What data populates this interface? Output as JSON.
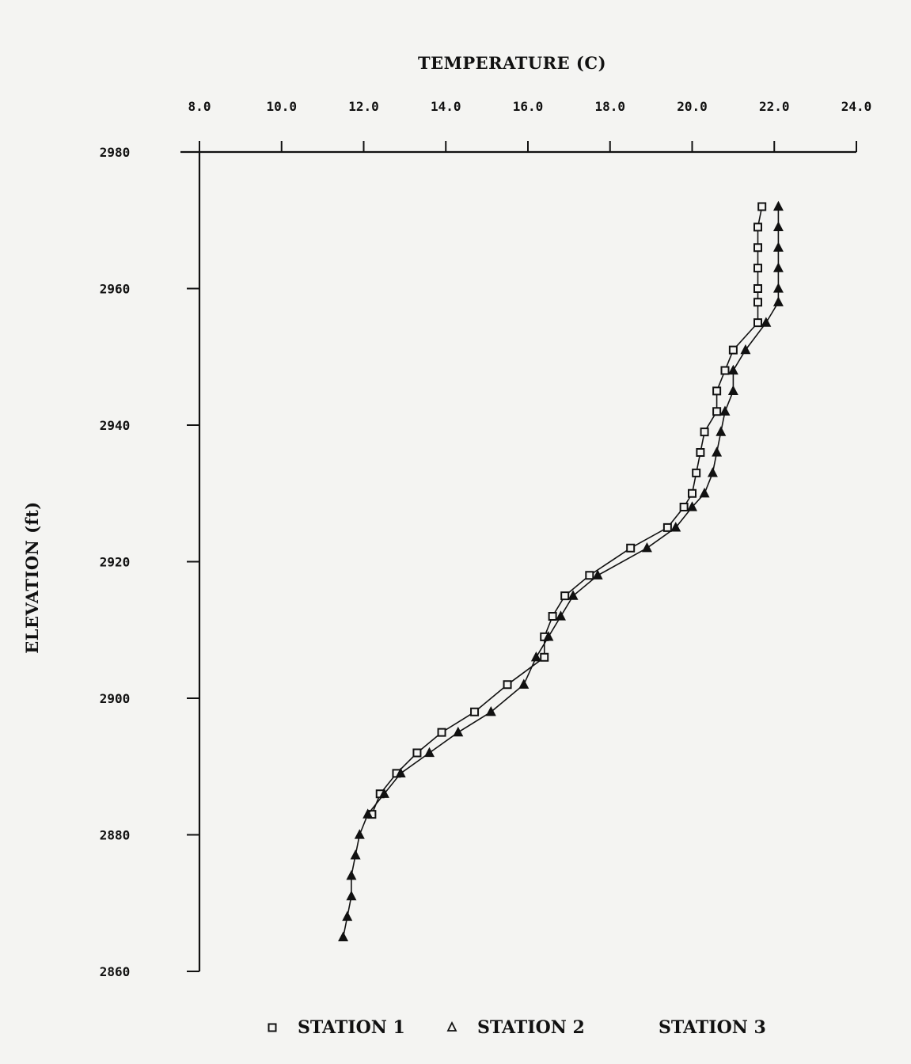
{
  "chart_data": {
    "type": "line",
    "xlabel": "TEMPERATURE (C)",
    "ylabel": "ELEVATION (ft)",
    "xlim": [
      8.0,
      24.0
    ],
    "ylim": [
      2860,
      2980
    ],
    "x_ticks": [
      "8.0",
      "10.0",
      "12.0",
      "14.0",
      "16.0",
      "18.0",
      "20.0",
      "22.0",
      "24.0"
    ],
    "y_ticks": [
      "2860",
      "2880",
      "2900",
      "2920",
      "2940",
      "2960",
      "2980"
    ],
    "x_axis_position": "top",
    "grid": false,
    "legend_position": "bottom",
    "series": [
      {
        "name": "STATION 1",
        "marker": "square",
        "points": [
          {
            "x": 21.7,
            "y": 2972
          },
          {
            "x": 21.6,
            "y": 2969
          },
          {
            "x": 21.6,
            "y": 2966
          },
          {
            "x": 21.6,
            "y": 2963
          },
          {
            "x": 21.6,
            "y": 2960
          },
          {
            "x": 21.6,
            "y": 2958
          },
          {
            "x": 21.6,
            "y": 2955
          },
          {
            "x": 21.0,
            "y": 2951
          },
          {
            "x": 20.8,
            "y": 2948
          },
          {
            "x": 20.6,
            "y": 2945
          },
          {
            "x": 20.6,
            "y": 2942
          },
          {
            "x": 20.3,
            "y": 2939
          },
          {
            "x": 20.2,
            "y": 2936
          },
          {
            "x": 20.1,
            "y": 2933
          },
          {
            "x": 20.0,
            "y": 2930
          },
          {
            "x": 19.8,
            "y": 2928
          },
          {
            "x": 19.4,
            "y": 2925
          },
          {
            "x": 18.5,
            "y": 2922
          },
          {
            "x": 17.5,
            "y": 2918
          },
          {
            "x": 16.9,
            "y": 2915
          },
          {
            "x": 16.6,
            "y": 2912
          },
          {
            "x": 16.4,
            "y": 2909
          },
          {
            "x": 16.4,
            "y": 2906
          },
          {
            "x": 15.5,
            "y": 2902
          },
          {
            "x": 14.7,
            "y": 2898
          },
          {
            "x": 13.9,
            "y": 2895
          },
          {
            "x": 13.3,
            "y": 2892
          },
          {
            "x": 12.8,
            "y": 2889
          },
          {
            "x": 12.4,
            "y": 2886
          },
          {
            "x": 12.2,
            "y": 2883
          }
        ]
      },
      {
        "name": "STATION 2",
        "marker": "triangle",
        "points": [
          {
            "x": 22.1,
            "y": 2972
          },
          {
            "x": 22.1,
            "y": 2969
          },
          {
            "x": 22.1,
            "y": 2966
          },
          {
            "x": 22.1,
            "y": 2963
          },
          {
            "x": 22.1,
            "y": 2960
          },
          {
            "x": 22.1,
            "y": 2958
          },
          {
            "x": 21.8,
            "y": 2955
          },
          {
            "x": 21.3,
            "y": 2951
          },
          {
            "x": 21.0,
            "y": 2948
          },
          {
            "x": 21.0,
            "y": 2945
          },
          {
            "x": 20.8,
            "y": 2942
          },
          {
            "x": 20.7,
            "y": 2939
          },
          {
            "x": 20.6,
            "y": 2936
          },
          {
            "x": 20.5,
            "y": 2933
          },
          {
            "x": 20.3,
            "y": 2930
          },
          {
            "x": 20.0,
            "y": 2928
          },
          {
            "x": 19.6,
            "y": 2925
          },
          {
            "x": 18.9,
            "y": 2922
          },
          {
            "x": 17.7,
            "y": 2918
          },
          {
            "x": 17.1,
            "y": 2915
          },
          {
            "x": 16.8,
            "y": 2912
          },
          {
            "x": 16.5,
            "y": 2909
          },
          {
            "x": 16.2,
            "y": 2906
          },
          {
            "x": 15.9,
            "y": 2902
          },
          {
            "x": 15.1,
            "y": 2898
          },
          {
            "x": 14.3,
            "y": 2895
          },
          {
            "x": 13.6,
            "y": 2892
          },
          {
            "x": 12.9,
            "y": 2889
          },
          {
            "x": 12.5,
            "y": 2886
          },
          {
            "x": 12.1,
            "y": 2883
          },
          {
            "x": 11.9,
            "y": 2880
          },
          {
            "x": 11.8,
            "y": 2877
          },
          {
            "x": 11.7,
            "y": 2874
          },
          {
            "x": 11.7,
            "y": 2871
          },
          {
            "x": 11.6,
            "y": 2868
          },
          {
            "x": 11.5,
            "y": 2865
          }
        ]
      }
    ],
    "legend": [
      {
        "label": "STATION 1",
        "marker": "square"
      },
      {
        "label": "STATION 2",
        "marker": "triangle"
      },
      {
        "label": "STATION 3",
        "marker": "none"
      }
    ]
  }
}
